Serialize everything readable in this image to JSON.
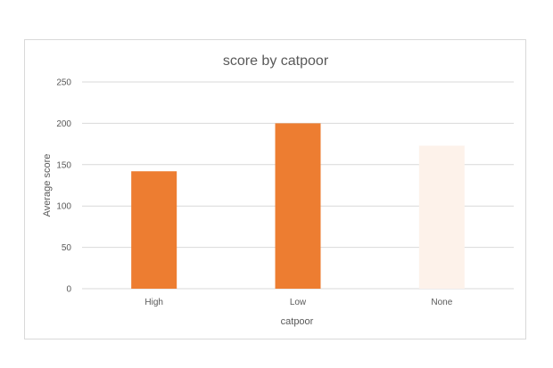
{
  "chart_data": {
    "type": "bar",
    "title": "score by catpoor",
    "xlabel": "catpoor",
    "ylabel": "Average score",
    "categories": [
      "High",
      "Low",
      "None"
    ],
    "values": [
      142,
      200,
      173
    ],
    "bar_colors": [
      "#ed7d31",
      "#ed7d31",
      "#fdf2ea"
    ],
    "ylim": [
      0,
      250
    ],
    "yticks": [
      0,
      50,
      100,
      150,
      200,
      250
    ],
    "grid": true,
    "legend": "none"
  }
}
